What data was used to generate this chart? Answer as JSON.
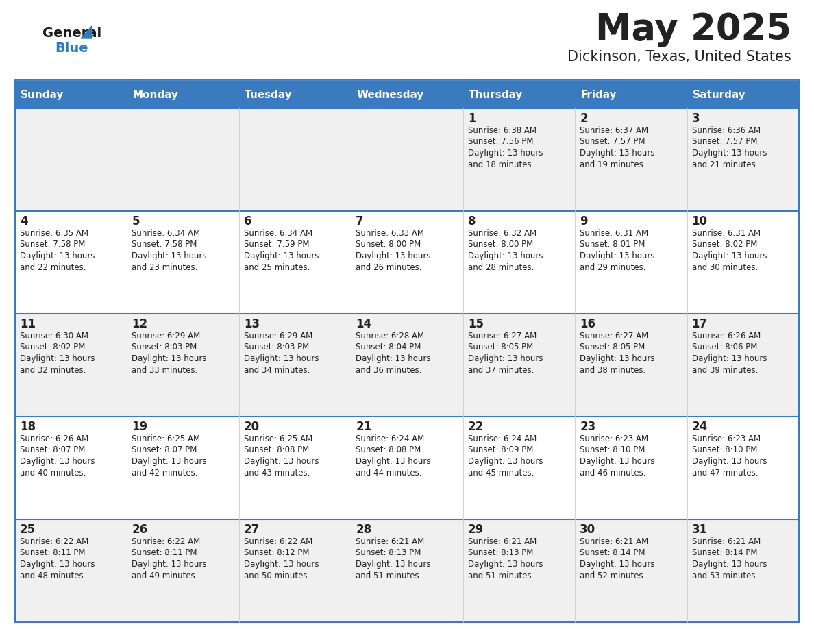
{
  "title": "May 2025",
  "subtitle": "Dickinson, Texas, United States",
  "header_bg": "#3a7abf",
  "header_text_color": "#ffffff",
  "cell_bg_odd": "#f0f0f0",
  "cell_bg_even": "#ffffff",
  "border_color": "#3a7abf",
  "text_color": "#222222",
  "day_names": [
    "Sunday",
    "Monday",
    "Tuesday",
    "Wednesday",
    "Thursday",
    "Friday",
    "Saturday"
  ],
  "logo_general_color": "#1a1a1a",
  "logo_blue_color": "#2e7abf",
  "logo_triangle_color": "#2e7abf",
  "weeks": [
    [
      {
        "day": "",
        "sunrise": "",
        "sunset": "",
        "daylight": ""
      },
      {
        "day": "",
        "sunrise": "",
        "sunset": "",
        "daylight": ""
      },
      {
        "day": "",
        "sunrise": "",
        "sunset": "",
        "daylight": ""
      },
      {
        "day": "",
        "sunrise": "",
        "sunset": "",
        "daylight": ""
      },
      {
        "day": "1",
        "sunrise": "6:38 AM",
        "sunset": "7:56 PM",
        "daylight": "13 hours and 18 minutes."
      },
      {
        "day": "2",
        "sunrise": "6:37 AM",
        "sunset": "7:57 PM",
        "daylight": "13 hours and 19 minutes."
      },
      {
        "day": "3",
        "sunrise": "6:36 AM",
        "sunset": "7:57 PM",
        "daylight": "13 hours and 21 minutes."
      }
    ],
    [
      {
        "day": "4",
        "sunrise": "6:35 AM",
        "sunset": "7:58 PM",
        "daylight": "13 hours and 22 minutes."
      },
      {
        "day": "5",
        "sunrise": "6:34 AM",
        "sunset": "7:58 PM",
        "daylight": "13 hours and 23 minutes."
      },
      {
        "day": "6",
        "sunrise": "6:34 AM",
        "sunset": "7:59 PM",
        "daylight": "13 hours and 25 minutes."
      },
      {
        "day": "7",
        "sunrise": "6:33 AM",
        "sunset": "8:00 PM",
        "daylight": "13 hours and 26 minutes."
      },
      {
        "day": "8",
        "sunrise": "6:32 AM",
        "sunset": "8:00 PM",
        "daylight": "13 hours and 28 minutes."
      },
      {
        "day": "9",
        "sunrise": "6:31 AM",
        "sunset": "8:01 PM",
        "daylight": "13 hours and 29 minutes."
      },
      {
        "day": "10",
        "sunrise": "6:31 AM",
        "sunset": "8:02 PM",
        "daylight": "13 hours and 30 minutes."
      }
    ],
    [
      {
        "day": "11",
        "sunrise": "6:30 AM",
        "sunset": "8:02 PM",
        "daylight": "13 hours and 32 minutes."
      },
      {
        "day": "12",
        "sunrise": "6:29 AM",
        "sunset": "8:03 PM",
        "daylight": "13 hours and 33 minutes."
      },
      {
        "day": "13",
        "sunrise": "6:29 AM",
        "sunset": "8:03 PM",
        "daylight": "13 hours and 34 minutes."
      },
      {
        "day": "14",
        "sunrise": "6:28 AM",
        "sunset": "8:04 PM",
        "daylight": "13 hours and 36 minutes."
      },
      {
        "day": "15",
        "sunrise": "6:27 AM",
        "sunset": "8:05 PM",
        "daylight": "13 hours and 37 minutes."
      },
      {
        "day": "16",
        "sunrise": "6:27 AM",
        "sunset": "8:05 PM",
        "daylight": "13 hours and 38 minutes."
      },
      {
        "day": "17",
        "sunrise": "6:26 AM",
        "sunset": "8:06 PM",
        "daylight": "13 hours and 39 minutes."
      }
    ],
    [
      {
        "day": "18",
        "sunrise": "6:26 AM",
        "sunset": "8:07 PM",
        "daylight": "13 hours and 40 minutes."
      },
      {
        "day": "19",
        "sunrise": "6:25 AM",
        "sunset": "8:07 PM",
        "daylight": "13 hours and 42 minutes."
      },
      {
        "day": "20",
        "sunrise": "6:25 AM",
        "sunset": "8:08 PM",
        "daylight": "13 hours and 43 minutes."
      },
      {
        "day": "21",
        "sunrise": "6:24 AM",
        "sunset": "8:08 PM",
        "daylight": "13 hours and 44 minutes."
      },
      {
        "day": "22",
        "sunrise": "6:24 AM",
        "sunset": "8:09 PM",
        "daylight": "13 hours and 45 minutes."
      },
      {
        "day": "23",
        "sunrise": "6:23 AM",
        "sunset": "8:10 PM",
        "daylight": "13 hours and 46 minutes."
      },
      {
        "day": "24",
        "sunrise": "6:23 AM",
        "sunset": "8:10 PM",
        "daylight": "13 hours and 47 minutes."
      }
    ],
    [
      {
        "day": "25",
        "sunrise": "6:22 AM",
        "sunset": "8:11 PM",
        "daylight": "13 hours and 48 minutes."
      },
      {
        "day": "26",
        "sunrise": "6:22 AM",
        "sunset": "8:11 PM",
        "daylight": "13 hours and 49 minutes."
      },
      {
        "day": "27",
        "sunrise": "6:22 AM",
        "sunset": "8:12 PM",
        "daylight": "13 hours and 50 minutes."
      },
      {
        "day": "28",
        "sunrise": "6:21 AM",
        "sunset": "8:13 PM",
        "daylight": "13 hours and 51 minutes."
      },
      {
        "day": "29",
        "sunrise": "6:21 AM",
        "sunset": "8:13 PM",
        "daylight": "13 hours and 51 minutes."
      },
      {
        "day": "30",
        "sunrise": "6:21 AM",
        "sunset": "8:14 PM",
        "daylight": "13 hours and 52 minutes."
      },
      {
        "day": "31",
        "sunrise": "6:21 AM",
        "sunset": "8:14 PM",
        "daylight": "13 hours and 53 minutes."
      }
    ]
  ]
}
